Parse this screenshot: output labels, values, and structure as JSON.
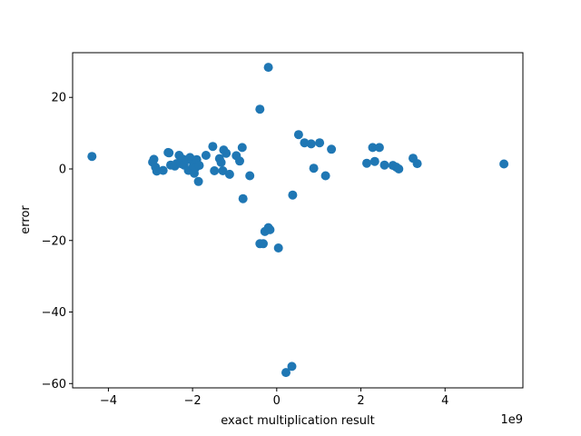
{
  "chart_data": {
    "type": "scatter",
    "xlabel": "exact multiplication result",
    "ylabel": "error",
    "x_offset_label": "1e9",
    "xlim": [
      -4.85,
      5.85
    ],
    "ylim": [
      -61.2,
      32.5
    ],
    "x_ticks": [
      -4,
      -2,
      0,
      2,
      4
    ],
    "x_tick_labels": [
      "−4",
      "−2",
      "0",
      "2",
      "4"
    ],
    "y_ticks": [
      -60,
      -40,
      -20,
      0,
      20
    ],
    "y_tick_labels": [
      "−60",
      "−40",
      "−20",
      "0",
      "20"
    ],
    "grid": false,
    "marker_color": "#1f77b4",
    "series": [
      {
        "x": [
          -4.39,
          -2.95,
          -2.92,
          -2.88,
          -2.85,
          -2.7,
          -2.58,
          -2.56,
          -2.52,
          -2.42,
          -2.38,
          -2.32,
          -2.28,
          -2.24,
          -2.2,
          -2.15,
          -2.1,
          -2.06,
          -2.02,
          -1.98,
          -1.96,
          -1.94,
          -1.9,
          -1.86,
          -1.84,
          -1.68,
          -1.52,
          -1.48,
          -1.36,
          -1.32,
          -1.28,
          -1.26,
          -1.2,
          -1.12,
          -0.96,
          -0.88,
          -0.82,
          -0.8,
          -0.64,
          -0.4,
          -0.4,
          -0.32,
          -0.28,
          -0.2,
          -0.2,
          -0.16,
          0.04,
          0.22,
          0.36,
          0.38,
          0.52,
          0.66,
          0.82,
          0.88,
          1.02,
          1.16,
          1.3,
          2.14,
          2.28,
          2.33,
          2.44,
          2.56,
          2.76,
          2.84,
          2.9,
          3.24,
          3.34,
          5.4
        ],
        "y": [
          3.5,
          1.9,
          2.7,
          0.5,
          -0.6,
          -0.4,
          4.6,
          4.5,
          1.1,
          0.8,
          1.5,
          3.8,
          1.5,
          2.8,
          1.1,
          2.5,
          -0.4,
          3.2,
          2.4,
          0.8,
          -1.2,
          0.2,
          2.6,
          -3.5,
          1.0,
          3.8,
          6.3,
          -0.5,
          2.9,
          1.8,
          -0.5,
          5.3,
          4.4,
          -1.5,
          3.7,
          2.2,
          6.0,
          -8.3,
          -1.9,
          -20.9,
          16.7,
          -20.9,
          -17.5,
          -16.4,
          28.4,
          -17.0,
          -22.1,
          -56.9,
          -55.2,
          -7.3,
          9.6,
          7.3,
          7.0,
          0.2,
          7.3,
          -1.9,
          5.5,
          1.6,
          6.0,
          2.1,
          6.0,
          1.1,
          1.0,
          0.5,
          0.0,
          3.0,
          1.5,
          1.4
        ]
      }
    ]
  }
}
